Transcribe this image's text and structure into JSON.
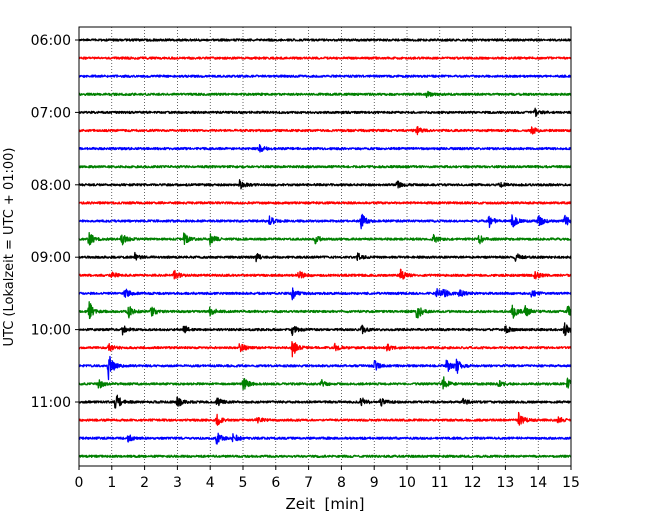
{
  "chart_data": {
    "type": "line",
    "title": "",
    "xlabel": "Zeit  [min]",
    "ylabel": "UTC (Lokalzeit = UTC + 01:00)",
    "xlim": [
      0,
      15
    ],
    "x_ticks": [
      "0",
      "1",
      "2",
      "3",
      "4",
      "5",
      "6",
      "7",
      "8",
      "9",
      "10",
      "11",
      "12",
      "13",
      "14",
      "15"
    ],
    "y_ticks": [
      "06:00",
      "07:00",
      "08:00",
      "09:00",
      "10:00",
      "11:00"
    ],
    "grid": "vertical dotted at each minute",
    "legend": "none",
    "trace_colors": [
      "#000000",
      "#ff0000",
      "#0000ff",
      "#008000"
    ],
    "trace_interval_min": 15,
    "traces": [
      {
        "start": "06:00",
        "color": "#000000",
        "events": []
      },
      {
        "start": "06:15",
        "color": "#ff0000",
        "events": []
      },
      {
        "start": "06:30",
        "color": "#0000ff",
        "events": []
      },
      {
        "start": "06:45",
        "color": "#008000",
        "events": [
          [
            10.6,
            0.3
          ]
        ]
      },
      {
        "start": "07:00",
        "color": "#000000",
        "events": [
          [
            13.9,
            0.5
          ]
        ]
      },
      {
        "start": "07:15",
        "color": "#ff0000",
        "events": [
          [
            10.3,
            0.4
          ],
          [
            13.8,
            0.4
          ]
        ]
      },
      {
        "start": "07:30",
        "color": "#0000ff",
        "events": [
          [
            5.5,
            0.4
          ]
        ]
      },
      {
        "start": "07:45",
        "color": "#008000",
        "events": []
      },
      {
        "start": "08:00",
        "color": "#000000",
        "events": [
          [
            4.9,
            0.5
          ],
          [
            9.7,
            0.4
          ],
          [
            12.8,
            0.4
          ]
        ]
      },
      {
        "start": "08:15",
        "color": "#ff0000",
        "events": []
      },
      {
        "start": "08:30",
        "color": "#0000ff",
        "events": [
          [
            5.8,
            0.6
          ],
          [
            8.6,
            0.9
          ],
          [
            12.5,
            0.7
          ],
          [
            13.2,
            0.8
          ],
          [
            14.0,
            0.7
          ],
          [
            14.8,
            0.7
          ]
        ]
      },
      {
        "start": "08:45",
        "color": "#008000",
        "events": [
          [
            0.3,
            0.8
          ],
          [
            1.3,
            0.7
          ],
          [
            3.2,
            0.7
          ],
          [
            4.0,
            0.6
          ],
          [
            7.2,
            0.5
          ],
          [
            10.8,
            0.5
          ],
          [
            12.2,
            0.5
          ]
        ]
      },
      {
        "start": "09:00",
        "color": "#000000",
        "events": [
          [
            1.7,
            0.5
          ],
          [
            5.4,
            0.4
          ],
          [
            8.5,
            0.4
          ],
          [
            13.3,
            0.5
          ]
        ]
      },
      {
        "start": "09:15",
        "color": "#ff0000",
        "events": [
          [
            1.0,
            0.4
          ],
          [
            2.9,
            0.6
          ],
          [
            6.7,
            0.6
          ],
          [
            9.8,
            0.7
          ],
          [
            13.9,
            0.4
          ]
        ]
      },
      {
        "start": "09:30",
        "color": "#0000ff",
        "events": [
          [
            1.4,
            0.5
          ],
          [
            6.5,
            0.7
          ],
          [
            10.9,
            0.6
          ],
          [
            11.1,
            0.5
          ],
          [
            11.6,
            0.4
          ],
          [
            13.8,
            0.4
          ]
        ]
      },
      {
        "start": "09:45",
        "color": "#008000",
        "events": [
          [
            0.3,
            1.2
          ],
          [
            1.5,
            0.7
          ],
          [
            2.2,
            0.6
          ],
          [
            4.0,
            0.6
          ],
          [
            10.3,
            0.9
          ],
          [
            13.2,
            0.9
          ],
          [
            13.6,
            0.6
          ],
          [
            14.9,
            0.6
          ]
        ]
      },
      {
        "start": "10:00",
        "color": "#000000",
        "events": [
          [
            1.3,
            0.6
          ],
          [
            3.2,
            0.5
          ],
          [
            6.5,
            0.6
          ],
          [
            8.6,
            0.5
          ],
          [
            13.0,
            0.4
          ],
          [
            14.8,
            0.7
          ]
        ]
      },
      {
        "start": "10:15",
        "color": "#ff0000",
        "events": [
          [
            0.9,
            0.4
          ],
          [
            4.9,
            0.6
          ],
          [
            6.5,
            1.0
          ],
          [
            7.8,
            0.5
          ],
          [
            9.4,
            0.4
          ]
        ]
      },
      {
        "start": "10:30",
        "color": "#0000ff",
        "events": [
          [
            0.9,
            1.5
          ],
          [
            9.0,
            0.6
          ],
          [
            11.2,
            1.0
          ],
          [
            11.5,
            0.9
          ]
        ]
      },
      {
        "start": "10:45",
        "color": "#008000",
        "events": [
          [
            0.6,
            0.5
          ],
          [
            5.0,
            0.8
          ],
          [
            7.4,
            0.4
          ],
          [
            11.1,
            0.8
          ],
          [
            12.8,
            0.4
          ],
          [
            14.9,
            0.9
          ]
        ]
      },
      {
        "start": "11:00",
        "color": "#000000",
        "events": [
          [
            1.1,
            1.2
          ],
          [
            3.0,
            0.6
          ],
          [
            4.2,
            0.5
          ],
          [
            8.6,
            0.5
          ],
          [
            9.2,
            0.5
          ],
          [
            11.7,
            0.4
          ]
        ]
      },
      {
        "start": "11:15",
        "color": "#ff0000",
        "events": [
          [
            4.2,
            0.6
          ],
          [
            5.4,
            0.5
          ],
          [
            13.4,
            0.9
          ],
          [
            14.6,
            0.4
          ]
        ]
      },
      {
        "start": "11:30",
        "color": "#0000ff",
        "events": [
          [
            1.5,
            0.4
          ],
          [
            4.2,
            0.7
          ],
          [
            4.7,
            0.6
          ]
        ]
      },
      {
        "start": "11:45",
        "color": "#008000",
        "events": []
      }
    ]
  }
}
